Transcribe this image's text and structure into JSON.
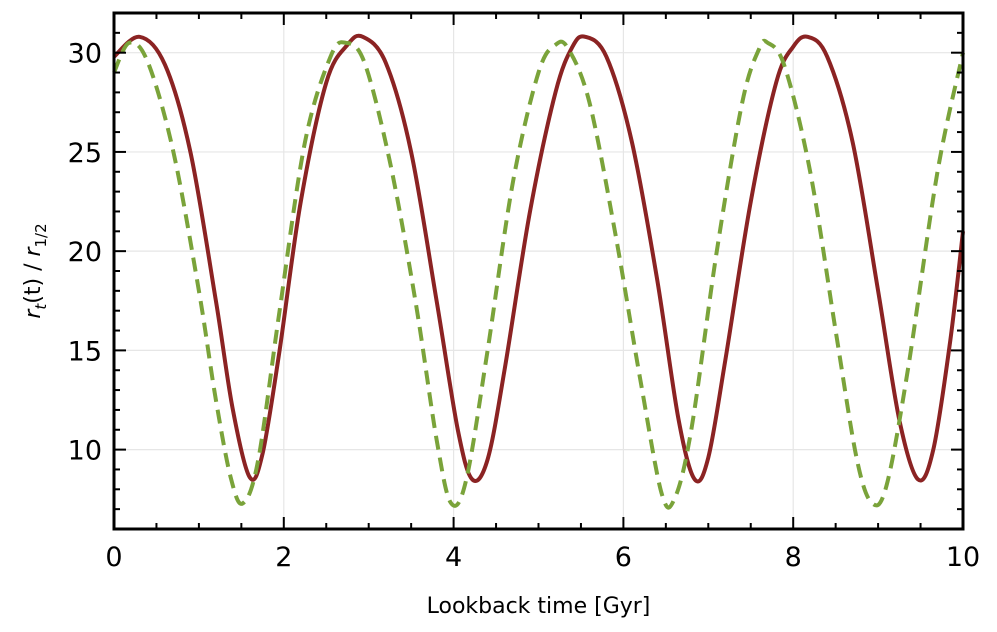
{
  "chart_data": {
    "type": "line",
    "xlabel": "Lookback time [Gyr]",
    "ylabel": "r_t(t) / r_1/2",
    "ylabel_parts": {
      "r": "r",
      "t_sub": "t",
      "arg": "(t) / ",
      "r2": "r",
      "half_sub": "1/2"
    },
    "xlim": [
      0,
      10
    ],
    "ylim": [
      6,
      32
    ],
    "xticks": [
      0,
      2,
      4,
      6,
      8,
      10
    ],
    "xtick_labels": [
      "0",
      "2",
      "4",
      "6",
      "8",
      "10"
    ],
    "yticks": [
      10,
      15,
      20,
      25,
      30
    ],
    "ytick_labels": [
      "10",
      "15",
      "20",
      "25",
      "30"
    ],
    "grid": true,
    "legend": "none",
    "series": [
      {
        "style": "solid",
        "color": "#8b2323",
        "x": [
          0.0,
          0.3,
          0.6,
          0.9,
          1.2,
          1.4,
          1.6,
          1.75,
          1.95,
          2.2,
          2.5,
          2.75,
          2.93,
          3.2,
          3.5,
          3.8,
          4.05,
          4.22,
          4.4,
          4.6,
          4.9,
          5.2,
          5.4,
          5.55,
          5.8,
          6.1,
          6.4,
          6.65,
          6.84,
          7.0,
          7.2,
          7.5,
          7.8,
          8.0,
          8.17,
          8.4,
          8.7,
          9.0,
          9.25,
          9.47,
          9.65,
          9.85,
          10.0
        ],
        "y": [
          29.8,
          30.8,
          29.4,
          25.0,
          17.5,
          12.0,
          8.6,
          9.8,
          15.0,
          22.5,
          28.5,
          30.4,
          30.8,
          29.5,
          25.0,
          17.5,
          11.0,
          8.5,
          9.5,
          14.0,
          22.0,
          28.0,
          30.3,
          30.8,
          29.8,
          25.5,
          18.5,
          11.5,
          8.5,
          9.6,
          14.5,
          22.5,
          28.5,
          30.3,
          30.8,
          29.8,
          25.5,
          18.0,
          11.5,
          8.5,
          10.0,
          15.5,
          21.0
        ]
      },
      {
        "style": "dashed",
        "color": "#7aa33a",
        "x": [
          0.0,
          0.18,
          0.4,
          0.7,
          1.0,
          1.2,
          1.38,
          1.52,
          1.7,
          1.95,
          2.25,
          2.55,
          2.73,
          2.95,
          3.25,
          3.55,
          3.8,
          3.97,
          4.15,
          4.4,
          4.7,
          5.0,
          5.2,
          5.35,
          5.6,
          5.9,
          6.2,
          6.45,
          6.6,
          6.8,
          7.1,
          7.4,
          7.6,
          7.7,
          7.9,
          8.2,
          8.5,
          8.75,
          8.93,
          9.1,
          9.35,
          9.7,
          10.0
        ],
        "y": [
          29.0,
          30.5,
          29.5,
          25.0,
          18.0,
          12.5,
          8.5,
          7.3,
          9.5,
          17.0,
          25.5,
          29.8,
          30.5,
          29.5,
          24.5,
          17.5,
          10.5,
          7.3,
          8.5,
          15.0,
          23.5,
          29.0,
          30.4,
          30.2,
          27.5,
          21.0,
          13.5,
          7.8,
          7.5,
          11.0,
          20.0,
          27.5,
          30.2,
          30.5,
          29.3,
          24.0,
          16.0,
          9.5,
          7.3,
          8.2,
          14.0,
          24.0,
          30.0
        ]
      }
    ]
  }
}
